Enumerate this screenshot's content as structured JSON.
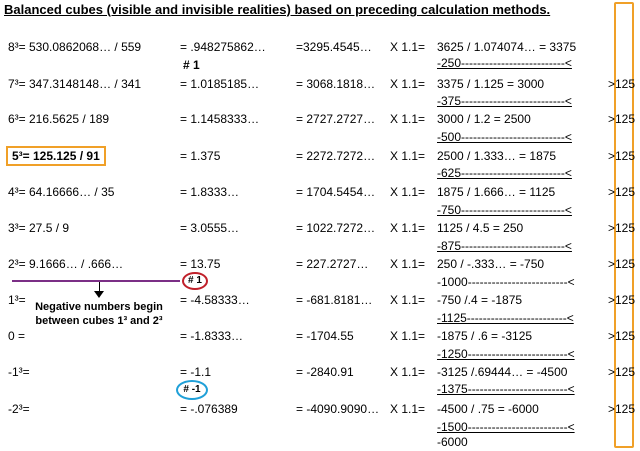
{
  "title": "Balanced cubes (visible and invisible realities) based on preceding calculation methods.",
  "rows": [
    {
      "c1": "8³= 530.0862068…  / 559",
      "c2": "= .948275862…",
      "c3": "=3295.4545…",
      "c4": "X 1.1=",
      "c5": "3625  / 1.074074…     = 3375",
      "c6": ""
    },
    {
      "c1": "7³= 347.3148148…  / 341",
      "c2": "= 1.0185185…",
      "c3": "= 3068.1818…",
      "c4": "X 1.1=",
      "c5": "3375  / 1.125        = 3000",
      "c6": ">125"
    },
    {
      "c1": "6³= 216.5625  / 189",
      "c2": "= 1.1458333…",
      "c3": "= 2727.2727…",
      "c4": "X 1.1=",
      "c5": "3000  / 1.2          = 2500",
      "c6": ">125"
    },
    {
      "c1": "5³= 125.125  / 91",
      "c2": "= 1.375",
      "c3": "= 2272.7272…",
      "c4": "X 1.1=",
      "c5": "2500  / 1.333…       = 1875",
      "c6": ">125"
    },
    {
      "c1": "4³=   64.16666…  / 35",
      "c2": "= 1.8333…",
      "c3": "= 1704.5454…",
      "c4": "X 1.1=",
      "c5": "1875  / 1.666…       = 1125",
      "c6": ">125"
    },
    {
      "c1": "3³=   27.5  / 9",
      "c2": "= 3.0555…",
      "c3": "= 1022.7272…",
      "c4": "X 1.1=",
      "c5": "1125  / 4.5          =   250",
      "c6": ">125"
    },
    {
      "c1": "2³=    9.1666…  / .666…",
      "c2": "= 13.75",
      "c3": "=   227.2727…",
      "c4": "X 1.1=",
      "c5": "  250  / -.333…      = -750",
      "c6": ">125"
    },
    {
      "c1": "1³=",
      "c2": "= -4.58333…",
      "c3": "= -681.8181…",
      "c4": "X 1.1=",
      "c5": " -750  /.4            = -1875",
      "c6": ">125"
    },
    {
      "c1": "0 =",
      "c2": "= -1.8333…",
      "c3": "= -1704.55",
      "c4": "X 1.1=",
      "c5": "-1875  / .6           = -3125",
      "c6": ">125"
    },
    {
      "c1": "-1³=",
      "c2": "= -1.1",
      "c3": "= -2840.91",
      "c4": "X 1.1=",
      "c5": "-3125  /.69444…       = -4500",
      "c6": ">125"
    },
    {
      "c1": "-2³=",
      "c2": "= -.076389",
      "c3": "= -4090.9090…",
      "c4": "X 1.1=",
      "c5": "-4500  / .75          = -6000",
      "c6": ">125"
    }
  ],
  "differences": [
    "-250--------------------------<",
    "-375--------------------------<",
    "-500--------------------------<",
    "-625--------------------------<",
    "-750--------------------------<",
    "-875--------------------------<",
    "-1000-------------------------<",
    "-1125-------------------------<",
    "-1250-------------------------<",
    "-1375-------------------------<",
    "-1500-------------------------<",
    "-6000"
  ],
  "markers": {
    "row1": "# 1",
    "red_circle": "# 1",
    "blue_circle": "# -1"
  },
  "note": "Negative numbers begin between cubes 1³ and 2³",
  "colors": {
    "highlight_box": "#f0a028",
    "purple_line": "#7b2f86",
    "red_circle": "#c0202a",
    "blue_circle": "#20a0d8"
  }
}
